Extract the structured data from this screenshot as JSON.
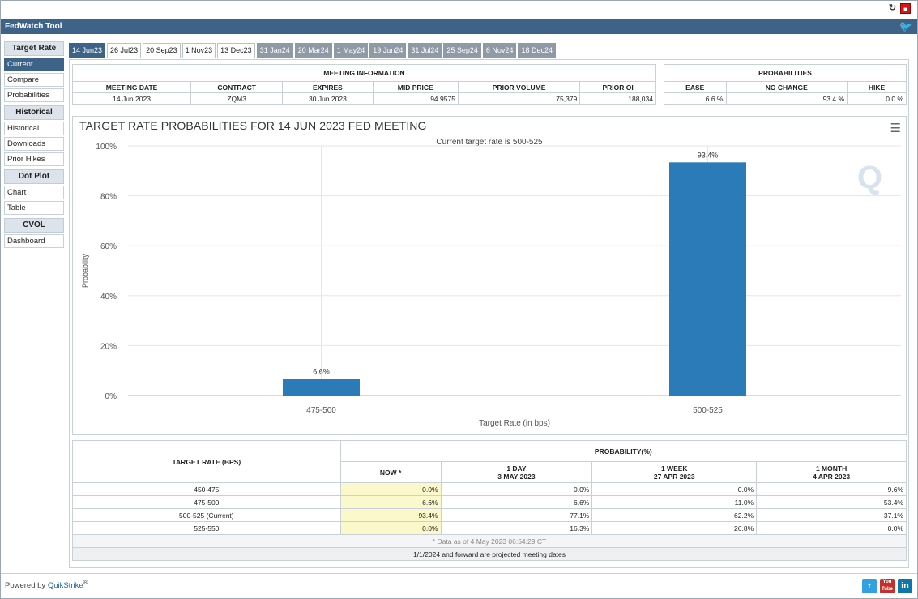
{
  "app": {
    "title": "FedWatch Tool"
  },
  "sidebar": {
    "groups": [
      {
        "header": "Target Rate",
        "items": [
          "Current",
          "Compare",
          "Probabilities"
        ]
      },
      {
        "header": "Historical",
        "items": [
          "Historical",
          "Downloads",
          "Prior Hikes"
        ]
      },
      {
        "header": "Dot Plot",
        "items": [
          "Chart",
          "Table"
        ]
      },
      {
        "header": "CVOL",
        "items": [
          "Dashboard"
        ]
      }
    ]
  },
  "tabs": [
    "14 Jun23",
    "26 Jul23",
    "20 Sep23",
    "1 Nov23",
    "13 Dec23",
    "31 Jan24",
    "20 Mar24",
    "1 May24",
    "19 Jun24",
    "31 Jul24",
    "25 Sep24",
    "6 Nov24",
    "18 Dec24"
  ],
  "meeting": {
    "caption": "MEETING INFORMATION",
    "headers": [
      "MEETING DATE",
      "CONTRACT",
      "EXPIRES",
      "MID PRICE",
      "PRIOR VOLUME",
      "PRIOR OI"
    ],
    "values": [
      "14 Jun 2023",
      "ZQM3",
      "30 Jun 2023",
      "94.9575",
      "75,379",
      "188,034"
    ]
  },
  "probabilities": {
    "caption": "PROBABILITIES",
    "headers": [
      "EASE",
      "NO CHANGE",
      "HIKE"
    ],
    "values": [
      "6.6 %",
      "93.4 %",
      "0.0 %"
    ]
  },
  "chart_data": {
    "type": "bar",
    "title": "TARGET RATE PROBABILITIES FOR 14 JUN 2023 FED MEETING",
    "subtitle": "Current target rate is 500-525",
    "categories": [
      "475-500",
      "500-525"
    ],
    "values": [
      6.6,
      93.4
    ],
    "data_labels": [
      "6.6%",
      "93.4%"
    ],
    "xlabel": "Target Rate (in bps)",
    "ylabel": "Probability",
    "ylim": [
      0,
      100
    ],
    "yticks": [
      "0%",
      "20%",
      "40%",
      "60%",
      "80%",
      "100%"
    ],
    "grid": true,
    "bar_color": "#2b7bb9"
  },
  "prob_table": {
    "rate_header": "TARGET RATE (BPS)",
    "prob_header": "PROBABILITY(%)",
    "col_headers": [
      {
        "line1": "NOW *",
        "line2": ""
      },
      {
        "line1": "1 DAY",
        "line2": "3 MAY 2023"
      },
      {
        "line1": "1 WEEK",
        "line2": "27 APR 2023"
      },
      {
        "line1": "1 MONTH",
        "line2": "4 APR 2023"
      }
    ],
    "rows": [
      [
        "450-475",
        "0.0%",
        "0.0%",
        "0.0%",
        "9.6%"
      ],
      [
        "475-500",
        "6.6%",
        "6.6%",
        "11.0%",
        "53.4%"
      ],
      [
        "500-525 (Current)",
        "93.4%",
        "77.1%",
        "62.2%",
        "37.1%"
      ],
      [
        "525-550",
        "0.0%",
        "16.3%",
        "26.8%",
        "0.0%"
      ]
    ],
    "footnote": "* Data as of 4 May 2023 06:54:29 CT",
    "projected_note": "1/1/2024 and forward are projected meeting dates"
  },
  "footer": {
    "powered_prefix": "Powered by ",
    "powered_brand": "QuikStrike",
    "powered_suffix": "®"
  },
  "icons": {
    "reload": "reload-icon",
    "pdf": "pdf-icon",
    "twitter": "twitter-icon",
    "youtube": "youtube-icon",
    "linkedin": "linkedin-icon",
    "menu": "menu-icon",
    "watermark": "quikstrike-q-icon"
  }
}
